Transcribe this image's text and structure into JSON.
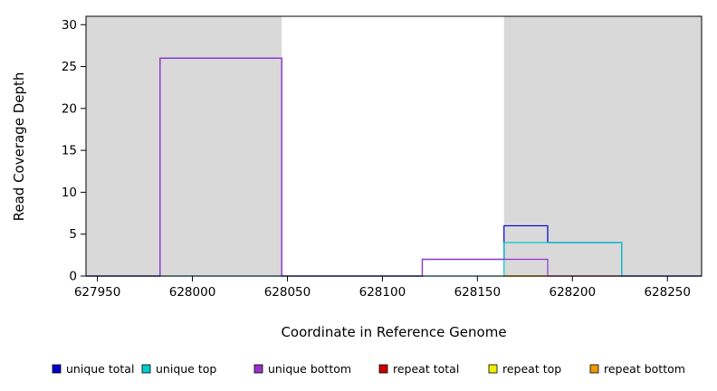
{
  "chart_data": {
    "type": "line",
    "title": "",
    "xlabel": "Coordinate in Reference Genome",
    "ylabel": "Read Coverage Depth",
    "xlim": [
      627944,
      628268
    ],
    "ylim": [
      0,
      31
    ],
    "x_ticks": [
      627950,
      628000,
      628050,
      628100,
      628150,
      628200,
      628250
    ],
    "y_ticks": [
      0,
      5,
      10,
      15,
      20,
      25,
      30
    ],
    "grid": false,
    "legend_position": "bottom",
    "plot_background": "#ffffff",
    "shaded_regions": [
      {
        "x0": 627944,
        "x1": 628047,
        "color": "#d9d9d9"
      },
      {
        "x0": 628164,
        "x1": 628268,
        "color": "#d9d9d9"
      }
    ],
    "series": [
      {
        "name": "unique total",
        "color": "#0000cc",
        "type": "step",
        "points": [
          [
            627944,
            0
          ],
          [
            627983,
            26
          ],
          [
            628047,
            0
          ],
          [
            628121,
            2
          ],
          [
            628164,
            6
          ],
          [
            628187,
            4
          ],
          [
            628226,
            0
          ],
          [
            628268,
            0
          ]
        ]
      },
      {
        "name": "unique top",
        "color": "#00cccc",
        "type": "step",
        "points": [
          [
            627944,
            0
          ],
          [
            628164,
            4
          ],
          [
            628226,
            0
          ],
          [
            628268,
            0
          ]
        ]
      },
      {
        "name": "unique bottom",
        "color": "#9933cc",
        "type": "step",
        "points": [
          [
            627944,
            0
          ],
          [
            627983,
            26
          ],
          [
            628047,
            0
          ],
          [
            628121,
            2
          ],
          [
            628187,
            0
          ],
          [
            628268,
            0
          ]
        ]
      },
      {
        "name": "repeat total",
        "color": "#cc0000",
        "type": "step",
        "points": [
          [
            628164,
            0
          ],
          [
            628226,
            0
          ]
        ]
      },
      {
        "name": "repeat top",
        "color": "#eeee00",
        "type": "step",
        "points": [
          [
            628164,
            0
          ],
          [
            628187,
            0
          ]
        ]
      },
      {
        "name": "repeat bottom",
        "color": "#ee9900",
        "type": "step",
        "points": [
          [
            628164,
            0
          ],
          [
            628187,
            0
          ]
        ]
      }
    ]
  }
}
